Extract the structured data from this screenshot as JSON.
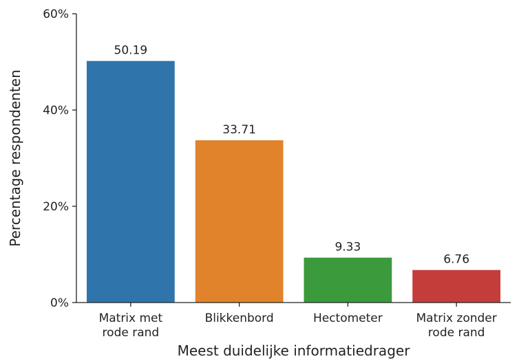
{
  "chart_data": {
    "type": "bar",
    "title": "",
    "xlabel": "Meest duidelijke informatiedrager",
    "ylabel": "Percentage respondenten",
    "ylim": [
      0,
      60
    ],
    "yticks": [
      0,
      20,
      40,
      60
    ],
    "ytick_labels": [
      "0%",
      "20%",
      "40%",
      "60%"
    ],
    "grid": false,
    "legend": "none",
    "categories": [
      [
        "Matrix met",
        "rode rand"
      ],
      [
        "Blikkenbord"
      ],
      [
        "Hectometer"
      ],
      [
        "Matrix zonder",
        "rode rand"
      ]
    ],
    "values": [
      50.19,
      33.71,
      9.33,
      6.76
    ],
    "value_labels": [
      "50.19",
      "33.71",
      "9.33",
      "6.76"
    ],
    "colors": [
      "#2f75ab",
      "#e0832a",
      "#3b9a3b",
      "#c43d3a"
    ]
  }
}
